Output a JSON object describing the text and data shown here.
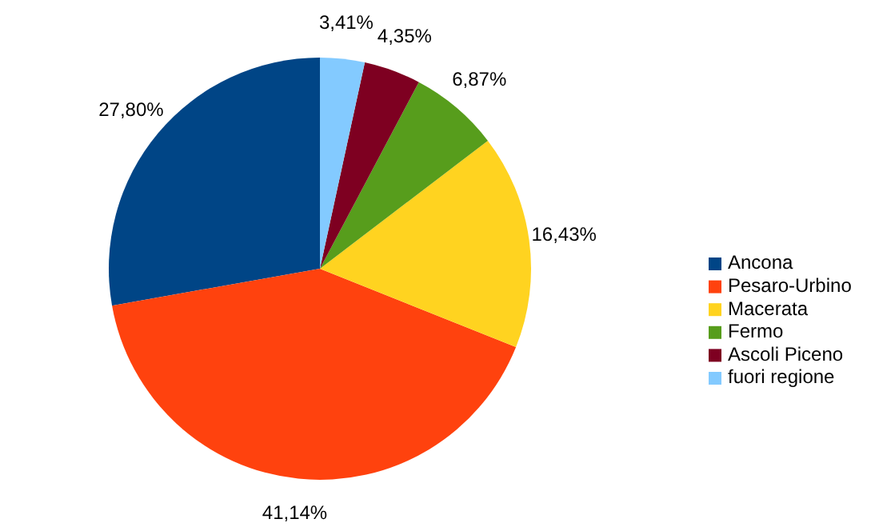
{
  "chart_data": {
    "type": "pie",
    "categories": [
      "Ancona",
      "Pesaro-Urbino",
      "Macerata",
      "Fermo",
      "Ascoli Piceno",
      "fuori regione"
    ],
    "values": [
      27.8,
      41.14,
      16.43,
      6.87,
      4.35,
      3.41
    ],
    "colors": [
      "#004586",
      "#ff420e",
      "#ffd320",
      "#579d1c",
      "#7e0021",
      "#83caff"
    ],
    "value_labels": [
      "27,80%",
      "41,14%",
      "16,43%",
      "6,87%",
      "4,35%",
      "3,41%"
    ],
    "legend": "right"
  }
}
